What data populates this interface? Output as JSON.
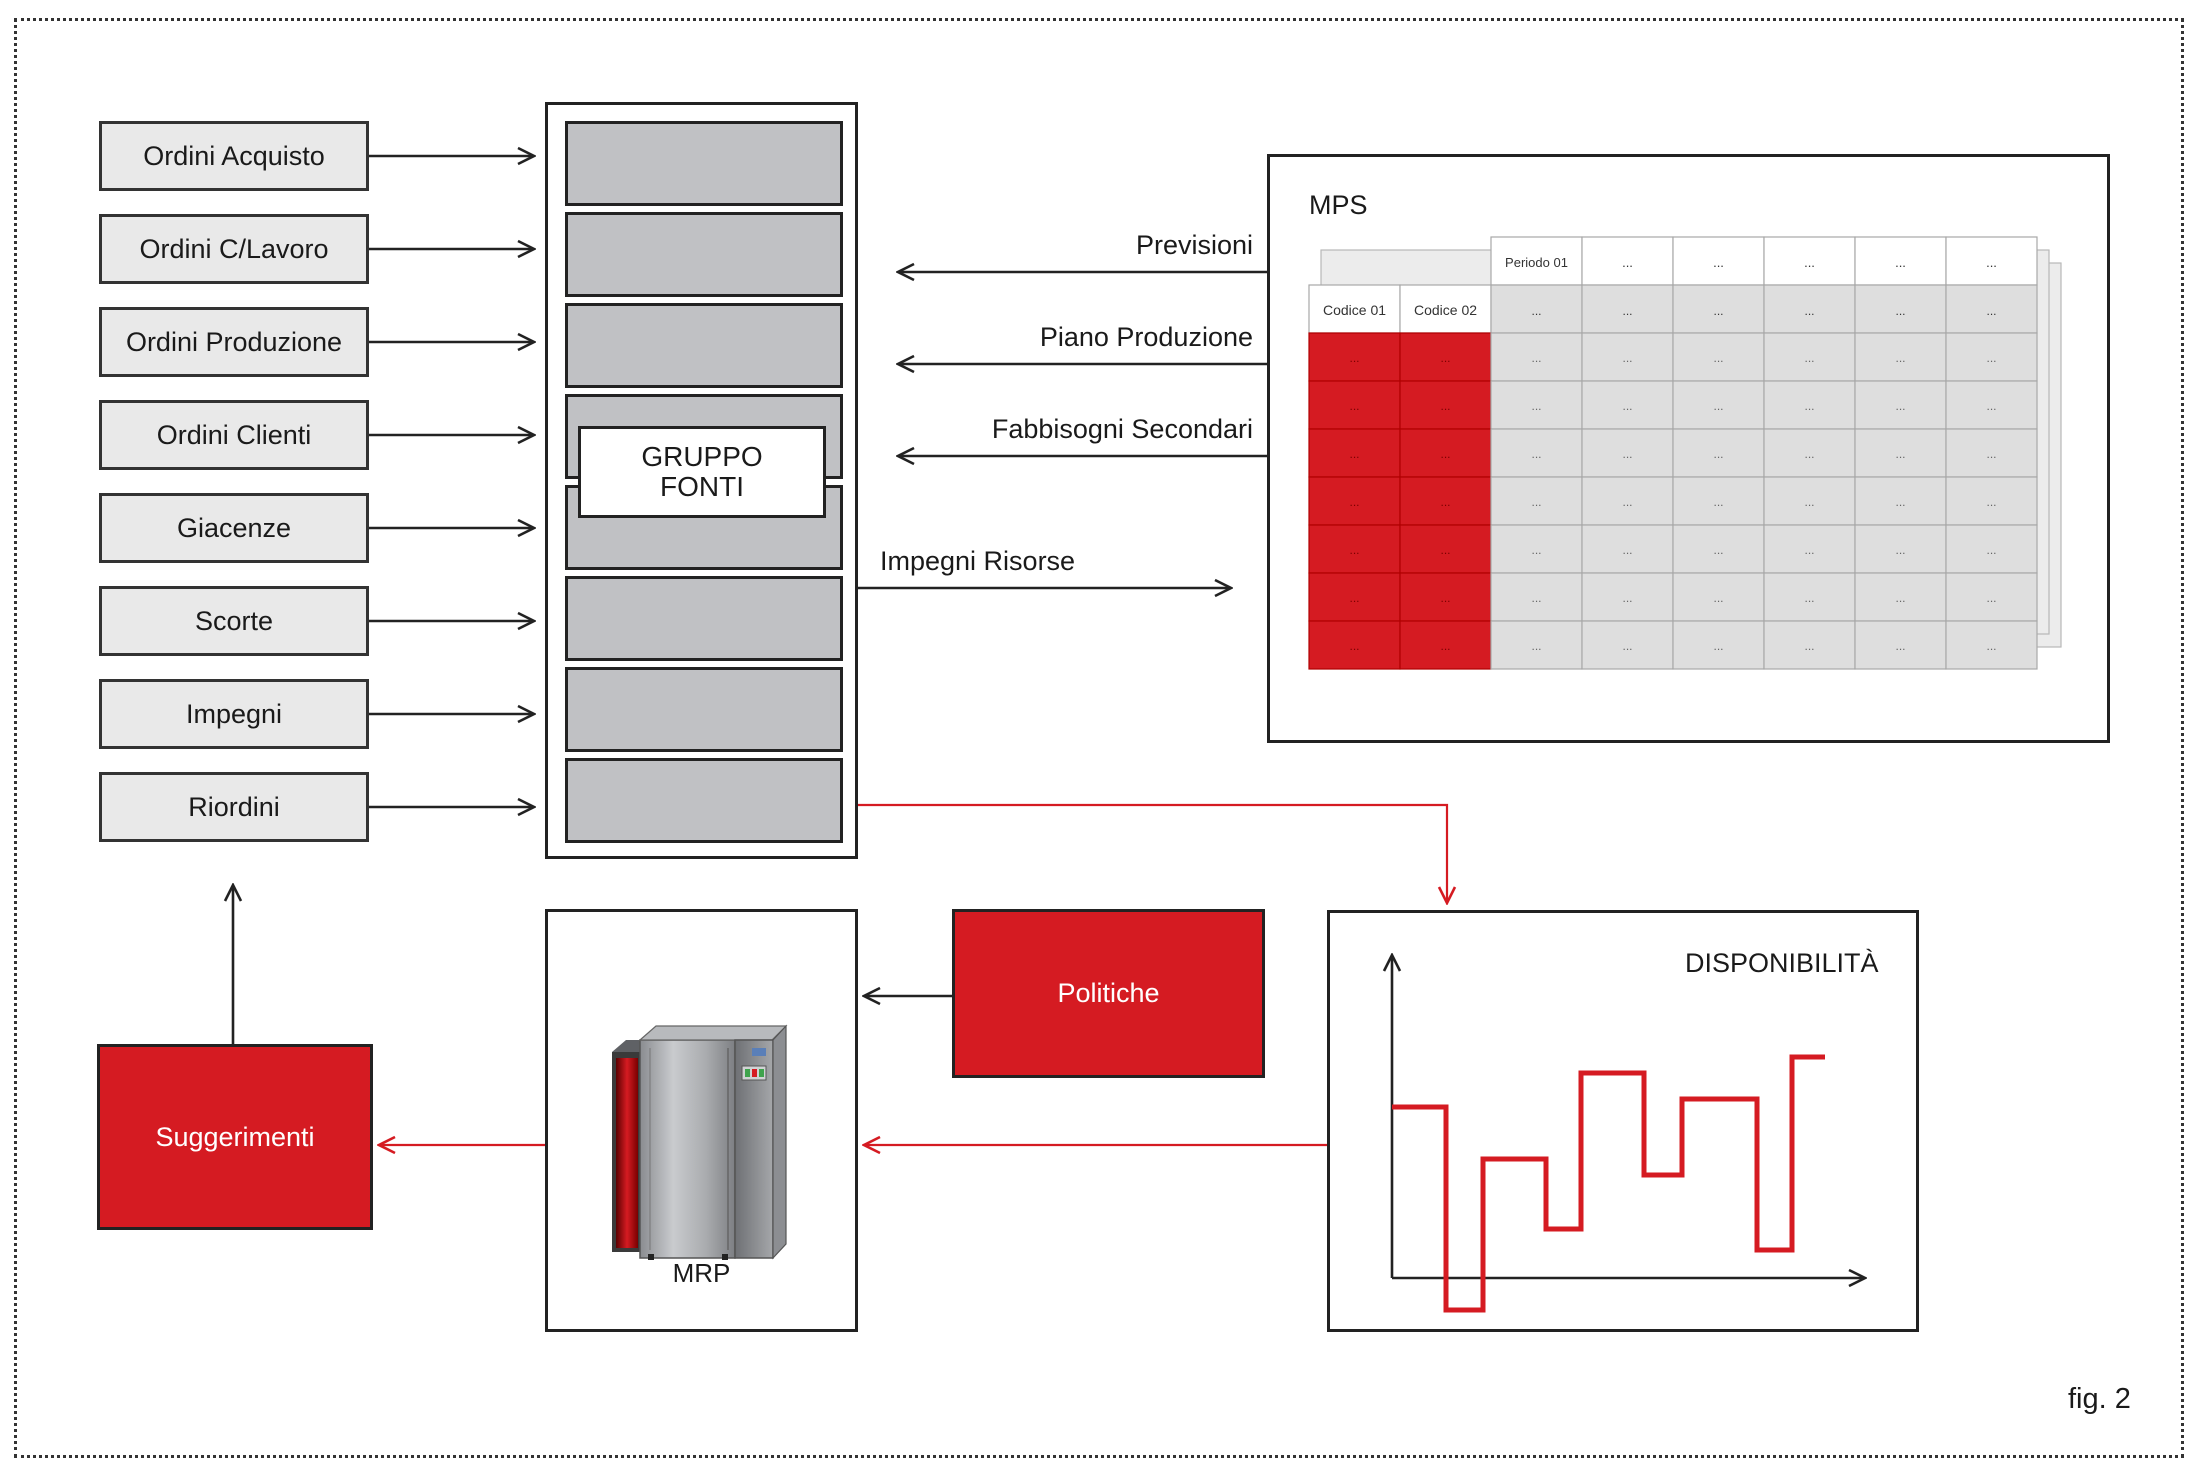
{
  "sources": [
    {
      "label": "Ordini Acquisto"
    },
    {
      "label": "Ordini C/Lavoro"
    },
    {
      "label": "Ordini Produzione"
    },
    {
      "label": "Ordini Clienti"
    },
    {
      "label": "Giacenze"
    },
    {
      "label": "Scorte"
    },
    {
      "label": "Impegni"
    },
    {
      "label": "Riordini"
    }
  ],
  "gruppo": {
    "line1": "GRUPPO",
    "line2": "FONTI"
  },
  "mps": {
    "title": "MPS",
    "period_header": "Periodo 01",
    "code_headers": [
      "Codice 01",
      "Codice 02"
    ],
    "ellipsis": "..."
  },
  "flows": {
    "previsioni": "Previsioni",
    "piano_produzione": "Piano Produzione",
    "fabbisogni_secondari": "Fabbisogni Secondari",
    "impegni_risorse": "Impegni Risorse"
  },
  "mrp": {
    "label": "MRP"
  },
  "politiche": {
    "label": "Politiche"
  },
  "suggerimenti": {
    "label": "Suggerimenti"
  },
  "disponibilita": {
    "title": "DISPONIBILITÀ"
  },
  "figure_label": "fig. 2",
  "colors": {
    "accent_red": "#d51b22",
    "box_gray": "#e9e9e9",
    "slot_gray": "#c0c1c4",
    "grid_gray": "#dedede"
  }
}
